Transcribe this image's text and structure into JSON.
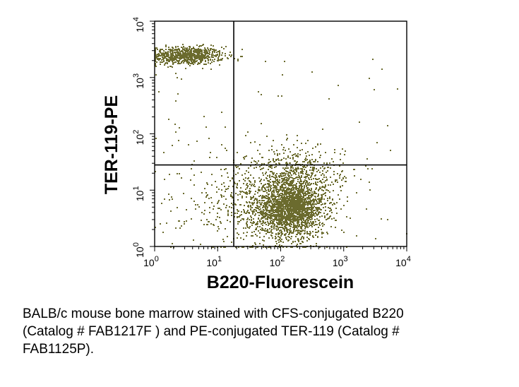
{
  "chart_data": {
    "type": "scatter",
    "title": "",
    "xlabel": "B220-Fluorescein",
    "ylabel": "TER-119-PE",
    "x_scale": "log",
    "y_scale": "log",
    "xlim": [
      1,
      10000
    ],
    "ylim": [
      1,
      10000
    ],
    "x_ticks": [
      {
        "base": "10",
        "exp": "0",
        "value": 1
      },
      {
        "base": "10",
        "exp": "1",
        "value": 10
      },
      {
        "base": "10",
        "exp": "2",
        "value": 100
      },
      {
        "base": "10",
        "exp": "3",
        "value": 1000
      },
      {
        "base": "10",
        "exp": "4",
        "value": 10000
      }
    ],
    "y_ticks": [
      {
        "base": "10",
        "exp": "0",
        "value": 1
      },
      {
        "base": "10",
        "exp": "1",
        "value": 10
      },
      {
        "base": "10",
        "exp": "2",
        "value": 100
      },
      {
        "base": "10",
        "exp": "3",
        "value": 1000
      },
      {
        "base": "10",
        "exp": "4",
        "value": 10000
      }
    ],
    "quadrant_gates": {
      "x": 18,
      "y": 28
    },
    "dot_color": "#6b6b2e",
    "populations": [
      {
        "x_center": 3,
        "y_center": 2500,
        "x_log_spread": 0.3,
        "y_log_spread": 0.08,
        "share": 0.2
      },
      {
        "x_center": 140,
        "y_center": 5,
        "x_log_spread": 0.28,
        "y_log_spread": 0.26,
        "share": 0.55
      },
      {
        "x_center": 40,
        "y_center": 6,
        "x_log_spread": 0.55,
        "y_log_spread": 0.45,
        "share": 0.15
      },
      {
        "x_center": 200,
        "y_center": 20,
        "x_log_spread": 0.35,
        "y_log_spread": 0.25,
        "share": 0.1
      }
    ],
    "grid": false,
    "legend": "none"
  },
  "caption": {
    "line1": "BALB/c mouse bone marrow stained with CFS-conjugated B220",
    "line2": "(Catalog # FAB1217F ) and PE-conjugated TER-119 (Catalog #",
    "line3": "FAB1125P)."
  }
}
